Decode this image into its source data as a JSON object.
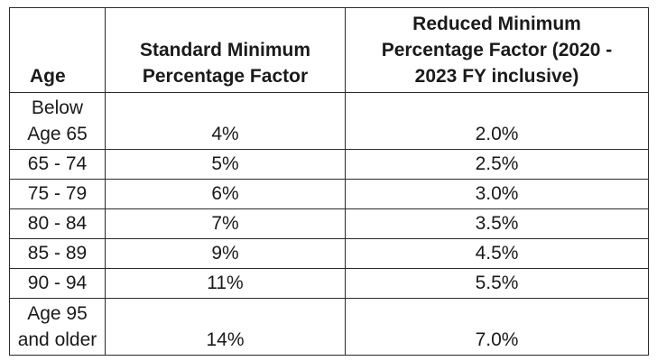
{
  "table": {
    "headers": {
      "age": "Age",
      "standard_line1": "Standard Minimum",
      "standard_line2": "Percentage Factor",
      "reduced_line1": "Reduced Minimum",
      "reduced_line2": "Percentage Factor (2020 -",
      "reduced_line3": "2023 FY inclusive)"
    },
    "rows": [
      {
        "age_line1": "Below",
        "age_line2": "Age 65",
        "standard": "4%",
        "reduced": "2.0%"
      },
      {
        "age_line1": "65 - 74",
        "standard": "5%",
        "reduced": "2.5%"
      },
      {
        "age_line1": "75 - 79",
        "standard": "6%",
        "reduced": "3.0%"
      },
      {
        "age_line1": "80 - 84",
        "standard": "7%",
        "reduced": "3.5%"
      },
      {
        "age_line1": "85 - 89",
        "standard": "9%",
        "reduced": "4.5%"
      },
      {
        "age_line1": "90 - 94",
        "standard": "11%",
        "reduced": "5.5%"
      },
      {
        "age_line1": "Age 95",
        "age_line2": "and older",
        "standard": "14%",
        "reduced": "7.0%"
      }
    ]
  }
}
